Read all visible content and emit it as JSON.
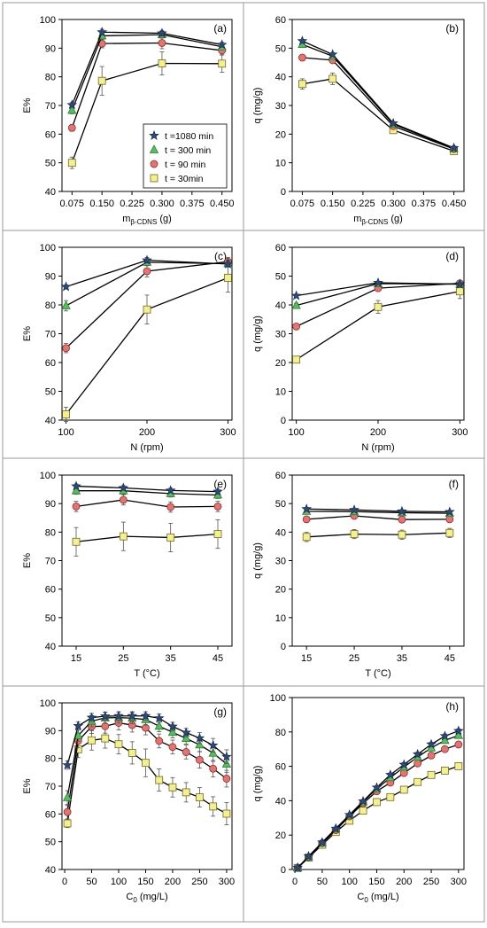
{
  "series_styles": {
    "t1080": {
      "marker": "star",
      "fill": "#2e4a7d",
      "stroke": "#1c2f55"
    },
    "t300": {
      "marker": "triangle",
      "fill": "#52c15a",
      "stroke": "#2b7a30"
    },
    "t90": {
      "marker": "circle",
      "fill": "#e87272",
      "stroke": "#8a2c2c"
    },
    "t30": {
      "marker": "square",
      "fill": "#f5f08c",
      "stroke": "#6b6b2a"
    }
  },
  "legend": {
    "entries": [
      {
        "key": "t1080",
        "label": "t =1080 min"
      },
      {
        "key": "t300",
        "label": "t = 300 min"
      },
      {
        "key": "t90",
        "label": "t = 90 min"
      },
      {
        "key": "t30",
        "label": "t = 30min"
      }
    ]
  },
  "chart_data": [
    {
      "panel": "(a)",
      "type": "line",
      "xlabel": "m",
      "xlabel_sub": "β-CDNS",
      "xlabel_suffix": " (g)",
      "ylabel": "E%",
      "xlim": [
        0.05,
        0.475
      ],
      "ylim": [
        40,
        100
      ],
      "xticks": [
        0.075,
        0.15,
        0.225,
        0.3,
        0.375,
        0.45
      ],
      "xtick_labels": [
        "0.075",
        "0.150",
        "0.225",
        "0.300",
        "0.375",
        "0.450"
      ],
      "yticks": [
        40,
        50,
        60,
        70,
        80,
        90,
        100
      ],
      "x": [
        0.075,
        0.15,
        0.3,
        0.45
      ],
      "series": [
        {
          "key": "t1080",
          "values": [
            70.2,
            95.6,
            95.2,
            91.2
          ],
          "err": [
            0.8,
            1.0,
            1.0,
            0.8
          ]
        },
        {
          "key": "t300",
          "values": [
            68.3,
            94.3,
            94.7,
            90.5
          ],
          "err": [
            1.2,
            1.2,
            1.2,
            1.0
          ]
        },
        {
          "key": "t90",
          "values": [
            62.2,
            91.6,
            91.8,
            89.2
          ],
          "err": [
            1.2,
            1.5,
            2.0,
            1.5
          ]
        },
        {
          "key": "t30",
          "values": [
            50.0,
            78.6,
            84.7,
            84.6
          ],
          "err": [
            2.0,
            5.0,
            4.0,
            3.0
          ]
        }
      ]
    },
    {
      "panel": "(b)",
      "type": "line",
      "xlabel": "m",
      "xlabel_sub": "β-CDNS",
      "xlabel_suffix": " (g)",
      "ylabel": "q (mg/g)",
      "xlim": [
        0.05,
        0.475
      ],
      "ylim": [
        0,
        60
      ],
      "xticks": [
        0.075,
        0.15,
        0.225,
        0.3,
        0.375,
        0.45
      ],
      "xtick_labels": [
        "0.075",
        "0.150",
        "0.225",
        "0.300",
        "0.375",
        "0.450"
      ],
      "yticks": [
        0,
        10,
        20,
        30,
        40,
        50,
        60
      ],
      "x": [
        0.075,
        0.15,
        0.3,
        0.45
      ],
      "series": [
        {
          "key": "t1080",
          "values": [
            52.5,
            47.8,
            23.8,
            15.2
          ],
          "err": [
            0.5,
            0.6,
            0.5,
            0.4
          ]
        },
        {
          "key": "t300",
          "values": [
            51.3,
            47.2,
            23.5,
            15.0
          ],
          "err": [
            0.6,
            0.6,
            0.5,
            0.4
          ]
        },
        {
          "key": "t90",
          "values": [
            46.7,
            45.8,
            22.8,
            14.8
          ],
          "err": [
            0.8,
            0.8,
            0.6,
            0.6
          ]
        },
        {
          "key": "t30",
          "values": [
            37.5,
            39.3,
            21.4,
            14.1
          ],
          "err": [
            1.8,
            2.0,
            1.0,
            1.0
          ]
        }
      ]
    },
    {
      "panel": "(c)",
      "type": "line",
      "xlabel": "N (rpm)",
      "ylabel": "E%",
      "xlim": [
        95,
        305
      ],
      "ylim": [
        40,
        100
      ],
      "xticks": [
        100,
        200,
        300
      ],
      "xtick_labels": [
        "100",
        "200",
        "300"
      ],
      "yticks": [
        40,
        50,
        60,
        70,
        80,
        90,
        100
      ],
      "x": [
        100,
        200,
        300
      ],
      "series": [
        {
          "key": "t1080",
          "values": [
            86.3,
            95.5,
            94.2
          ],
          "err": [
            0.6,
            1.0,
            1.0
          ]
        },
        {
          "key": "t300",
          "values": [
            79.7,
            94.8,
            94.3
          ],
          "err": [
            1.8,
            1.2,
            1.2
          ]
        },
        {
          "key": "t90",
          "values": [
            65.0,
            91.7,
            95.0
          ],
          "err": [
            1.6,
            2.0,
            1.5
          ]
        },
        {
          "key": "t30",
          "values": [
            42.0,
            78.4,
            89.4
          ],
          "err": [
            2.5,
            5.0,
            5.0
          ]
        }
      ]
    },
    {
      "panel": "(d)",
      "type": "line",
      "xlabel": "N (rpm)",
      "ylabel": "q (mg/g)",
      "xlim": [
        95,
        305
      ],
      "ylim": [
        0,
        60
      ],
      "xticks": [
        100,
        200,
        300
      ],
      "xtick_labels": [
        "100",
        "200",
        "300"
      ],
      "yticks": [
        0,
        10,
        20,
        30,
        40,
        50,
        60
      ],
      "x": [
        100,
        200,
        300
      ],
      "series": [
        {
          "key": "t1080",
          "values": [
            43.2,
            47.7,
            47.2
          ],
          "err": [
            0.5,
            0.5,
            0.5
          ]
        },
        {
          "key": "t300",
          "values": [
            39.8,
            47.4,
            47.2
          ],
          "err": [
            0.8,
            0.6,
            0.6
          ]
        },
        {
          "key": "t90",
          "values": [
            32.5,
            45.8,
            47.5
          ],
          "err": [
            0.8,
            1.0,
            0.8
          ]
        },
        {
          "key": "t30",
          "values": [
            21.0,
            39.3,
            44.7
          ],
          "err": [
            1.0,
            2.2,
            2.5
          ]
        }
      ]
    },
    {
      "panel": "(e)",
      "type": "line",
      "xlabel": "T (°C)",
      "ylabel": "E%",
      "xlim": [
        12,
        48
      ],
      "ylim": [
        40,
        100
      ],
      "xticks": [
        15,
        25,
        35,
        45
      ],
      "xtick_labels": [
        "15",
        "25",
        "35",
        "45"
      ],
      "yticks": [
        40,
        50,
        60,
        70,
        80,
        90,
        100
      ],
      "x": [
        15,
        25,
        35,
        45
      ],
      "series": [
        {
          "key": "t1080",
          "values": [
            96.1,
            95.5,
            94.6,
            94.2
          ],
          "err": [
            0.8,
            0.8,
            0.8,
            0.8
          ]
        },
        {
          "key": "t300",
          "values": [
            94.5,
            94.5,
            93.5,
            93.0
          ],
          "err": [
            1.2,
            1.2,
            1.2,
            1.2
          ]
        },
        {
          "key": "t90",
          "values": [
            89.0,
            91.3,
            88.8,
            89.0
          ],
          "err": [
            1.8,
            1.8,
            1.8,
            1.8
          ]
        },
        {
          "key": "t30",
          "values": [
            76.6,
            78.5,
            78.1,
            79.3
          ],
          "err": [
            5.0,
            5.0,
            5.0,
            5.0
          ]
        }
      ]
    },
    {
      "panel": "(f)",
      "type": "line",
      "xlabel": "T (°C)",
      "ylabel": "q (mg/g)",
      "xlim": [
        12,
        48
      ],
      "ylim": [
        0,
        60
      ],
      "xticks": [
        15,
        25,
        35,
        45
      ],
      "xtick_labels": [
        "15",
        "25",
        "35",
        "45"
      ],
      "yticks": [
        0,
        10,
        20,
        30,
        40,
        50,
        60
      ],
      "x": [
        15,
        25,
        35,
        45
      ],
      "series": [
        {
          "key": "t1080",
          "values": [
            48.1,
            47.8,
            47.3,
            47.1
          ],
          "err": [
            0.5,
            0.5,
            0.5,
            0.5
          ]
        },
        {
          "key": "t300",
          "values": [
            47.3,
            47.2,
            46.8,
            46.6
          ],
          "err": [
            0.6,
            0.6,
            0.6,
            0.6
          ]
        },
        {
          "key": "t90",
          "values": [
            44.5,
            45.7,
            44.4,
            44.5
          ],
          "err": [
            0.9,
            0.9,
            0.9,
            0.9
          ]
        },
        {
          "key": "t30",
          "values": [
            38.3,
            39.3,
            39.1,
            39.7
          ],
          "err": [
            1.6,
            1.6,
            1.6,
            1.6
          ]
        }
      ]
    },
    {
      "panel": "(g)",
      "type": "line",
      "xlabel": "C",
      "xlabel_sub": "0",
      "xlabel_suffix": " (mg/L)",
      "ylabel": "E%",
      "xlim": [
        -5,
        310
      ],
      "ylim": [
        40,
        100
      ],
      "xticks": [
        0,
        50,
        100,
        150,
        200,
        250,
        300
      ],
      "xtick_labels": [
        "0",
        "50",
        "100",
        "150",
        "200",
        "250",
        "300"
      ],
      "yticks": [
        40,
        50,
        60,
        70,
        80,
        90,
        100
      ],
      "x": [
        5,
        25,
        50,
        75,
        100,
        125,
        150,
        175,
        200,
        225,
        250,
        275,
        300
      ],
      "series": [
        {
          "key": "t1080",
          "values": [
            77.6,
            91.7,
            94.7,
            95.2,
            95.3,
            95.3,
            95.3,
            94.5,
            91.5,
            89.3,
            87.3,
            84.7,
            80.6
          ],
          "err": [
            1.5,
            1.5,
            1.5,
            1.5,
            1.5,
            1.5,
            1.5,
            1.5,
            1.5,
            1.5,
            2.0,
            2.5,
            2.5
          ]
        },
        {
          "key": "t300",
          "values": [
            65.9,
            88.2,
            93.4,
            94.6,
            94.7,
            94.5,
            94.0,
            91.6,
            89.4,
            87.2,
            84.9,
            81.9,
            78.0
          ],
          "err": [
            2.5,
            2.0,
            2.0,
            2.0,
            2.0,
            2.0,
            2.0,
            2.0,
            2.0,
            2.0,
            2.5,
            3.0,
            3.0
          ]
        },
        {
          "key": "t90",
          "values": [
            60.7,
            86.3,
            91.5,
            91.6,
            92.8,
            92.0,
            91.0,
            86.3,
            84.1,
            82.3,
            79.5,
            76.3,
            72.7
          ],
          "err": [
            2.5,
            2.5,
            2.5,
            2.5,
            2.5,
            2.5,
            2.5,
            2.5,
            2.5,
            2.5,
            3.0,
            3.0,
            3.0
          ]
        },
        {
          "key": "t30",
          "values": [
            56.6,
            83.3,
            86.5,
            87.2,
            85.1,
            82.0,
            78.4,
            72.2,
            69.6,
            67.8,
            66.0,
            62.7,
            60.1
          ],
          "err": [
            1.5,
            3.0,
            3.5,
            3.5,
            3.5,
            4.0,
            5.0,
            4.0,
            3.5,
            3.5,
            3.5,
            3.5,
            4.0
          ]
        }
      ]
    },
    {
      "panel": "(h)",
      "type": "line",
      "xlabel": "C",
      "xlabel_sub": "0",
      "xlabel_suffix": " (mg/L)",
      "ylabel": "q (mg/g)",
      "xlim": [
        -5,
        310
      ],
      "ylim": [
        0,
        100
      ],
      "xticks": [
        0,
        50,
        100,
        150,
        200,
        250,
        300
      ],
      "xtick_labels": [
        "0",
        "50",
        "100",
        "150",
        "200",
        "250",
        "300"
      ],
      "yticks": [
        0,
        20,
        40,
        60,
        80,
        100
      ],
      "x": [
        5,
        25,
        50,
        75,
        100,
        125,
        150,
        175,
        200,
        225,
        250,
        275,
        300
      ],
      "series": [
        {
          "key": "t1080",
          "values": [
            1.0,
            7.7,
            15.8,
            23.8,
            31.8,
            39.7,
            47.7,
            55.1,
            61.0,
            67.0,
            72.8,
            77.6,
            80.6
          ],
          "err": [
            0.5,
            0.5,
            0.5,
            0.8,
            0.8,
            1.0,
            1.0,
            1.0,
            1.2,
            1.2,
            1.2,
            1.2,
            1.2
          ]
        },
        {
          "key": "t300",
          "values": [
            1.0,
            7.4,
            15.6,
            23.7,
            31.6,
            39.3,
            47.0,
            53.4,
            59.6,
            65.4,
            70.7,
            75.1,
            78.0
          ],
          "err": [
            0.5,
            0.5,
            0.5,
            0.8,
            0.8,
            1.0,
            1.0,
            1.0,
            1.2,
            1.2,
            1.2,
            1.2,
            1.2
          ]
        },
        {
          "key": "t90",
          "values": [
            1.0,
            7.2,
            15.3,
            22.9,
            30.9,
            38.4,
            45.5,
            50.5,
            56.1,
            61.7,
            66.3,
            70.0,
            72.7
          ],
          "err": [
            0.5,
            0.5,
            0.5,
            0.8,
            0.8,
            1.0,
            1.0,
            1.0,
            1.2,
            1.2,
            1.2,
            1.2,
            1.2
          ]
        },
        {
          "key": "t30",
          "values": [
            0.9,
            6.9,
            14.4,
            21.8,
            28.4,
            34.2,
            39.2,
            42.1,
            46.4,
            50.9,
            55.0,
            57.5,
            60.1
          ],
          "err": [
            0.5,
            0.5,
            0.5,
            0.8,
            0.8,
            1.0,
            1.0,
            1.0,
            1.2,
            1.2,
            1.2,
            1.2,
            1.2
          ]
        }
      ]
    }
  ]
}
